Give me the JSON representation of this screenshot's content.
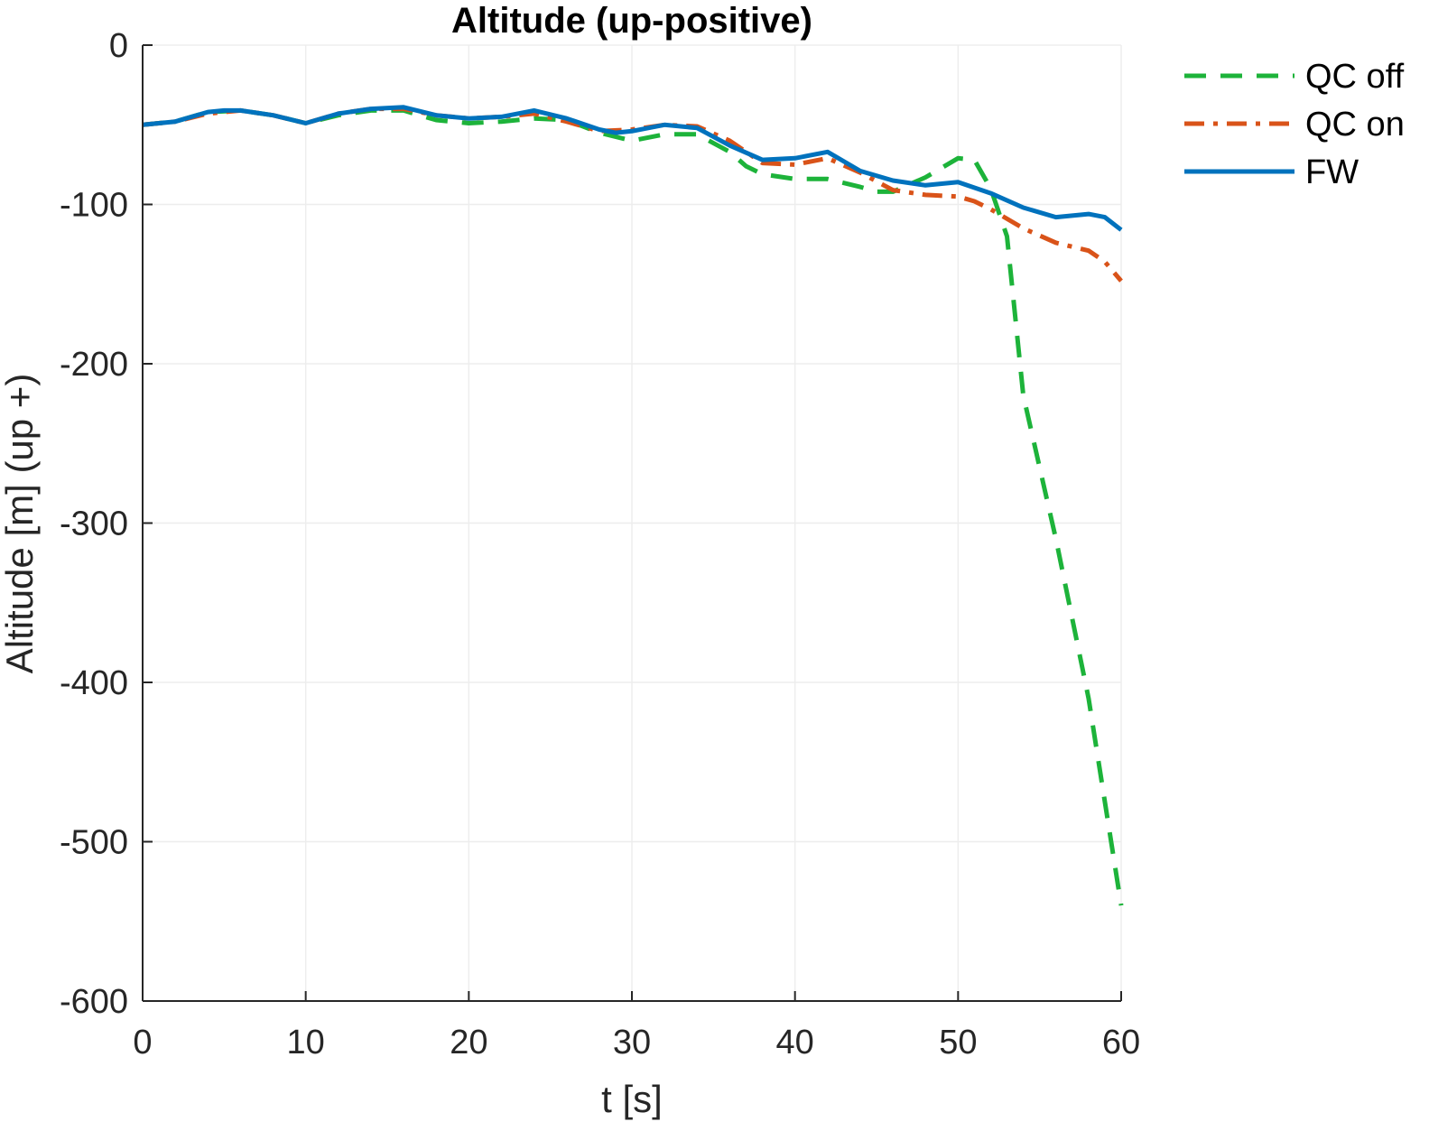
{
  "chart_data": {
    "type": "line",
    "title": "Altitude (up-positive)",
    "xlabel": "t [s]",
    "ylabel": "Altitude [m] (up +)",
    "xlim": [
      0,
      60
    ],
    "ylim": [
      -600,
      0
    ],
    "xticks": [
      0,
      10,
      20,
      30,
      40,
      50,
      60
    ],
    "yticks": [
      0,
      -100,
      -200,
      -300,
      -400,
      -500,
      -600
    ],
    "grid": true,
    "legend_position": "top-right, outside",
    "series": [
      {
        "name": "QC off",
        "color": "#1db33a",
        "style": "dashed",
        "x": [
          0,
          2,
          4,
          6,
          8,
          10,
          12,
          14,
          16,
          18,
          20,
          22,
          24,
          26,
          28,
          30,
          32,
          34,
          36,
          37,
          38,
          40,
          42,
          44,
          45,
          46,
          48,
          50,
          51,
          52,
          53,
          54,
          56,
          58,
          60
        ],
        "y": [
          -50,
          -48,
          -42,
          -41,
          -44,
          -49,
          -44,
          -41,
          -41,
          -47,
          -49,
          -48,
          -46,
          -47,
          -55,
          -60,
          -56,
          -56,
          -67,
          -76,
          -81,
          -84,
          -84,
          -89,
          -92,
          -92,
          -83,
          -71,
          -72,
          -90,
          -120,
          -220,
          -310,
          -410,
          -540
        ]
      },
      {
        "name": "QC on",
        "color": "#d95319",
        "style": "dashdot",
        "x": [
          0,
          2,
          4,
          6,
          8,
          10,
          12,
          14,
          16,
          18,
          20,
          22,
          24,
          26,
          28,
          30,
          32,
          34,
          36,
          38,
          40,
          42,
          44,
          46,
          48,
          50,
          51,
          52,
          54,
          56,
          58,
          59,
          60
        ],
        "y": [
          -50,
          -48,
          -43,
          -41,
          -44,
          -49,
          -43,
          -40,
          -40,
          -44,
          -46,
          -45,
          -43,
          -48,
          -54,
          -53,
          -50,
          -51,
          -60,
          -74,
          -75,
          -71,
          -80,
          -91,
          -94,
          -95,
          -98,
          -103,
          -115,
          -124,
          -129,
          -136,
          -148
        ]
      },
      {
        "name": "FW",
        "color": "#0072bd",
        "style": "solid",
        "x": [
          0,
          2,
          4,
          5,
          6,
          8,
          10,
          12,
          14,
          16,
          18,
          20,
          22,
          24,
          26,
          28,
          29,
          30,
          32,
          34,
          36,
          38,
          40,
          42,
          44,
          46,
          48,
          50,
          52,
          54,
          56,
          58,
          59,
          60
        ],
        "y": [
          -50,
          -48,
          -42,
          -41,
          -41,
          -44,
          -49,
          -43,
          -40,
          -39,
          -44,
          -46,
          -45,
          -41,
          -46,
          -53,
          -55,
          -54,
          -50,
          -52,
          -63,
          -72,
          -71,
          -67,
          -79,
          -85,
          -88,
          -86,
          -93,
          -102,
          -108,
          -106,
          -108,
          -116
        ]
      }
    ]
  }
}
